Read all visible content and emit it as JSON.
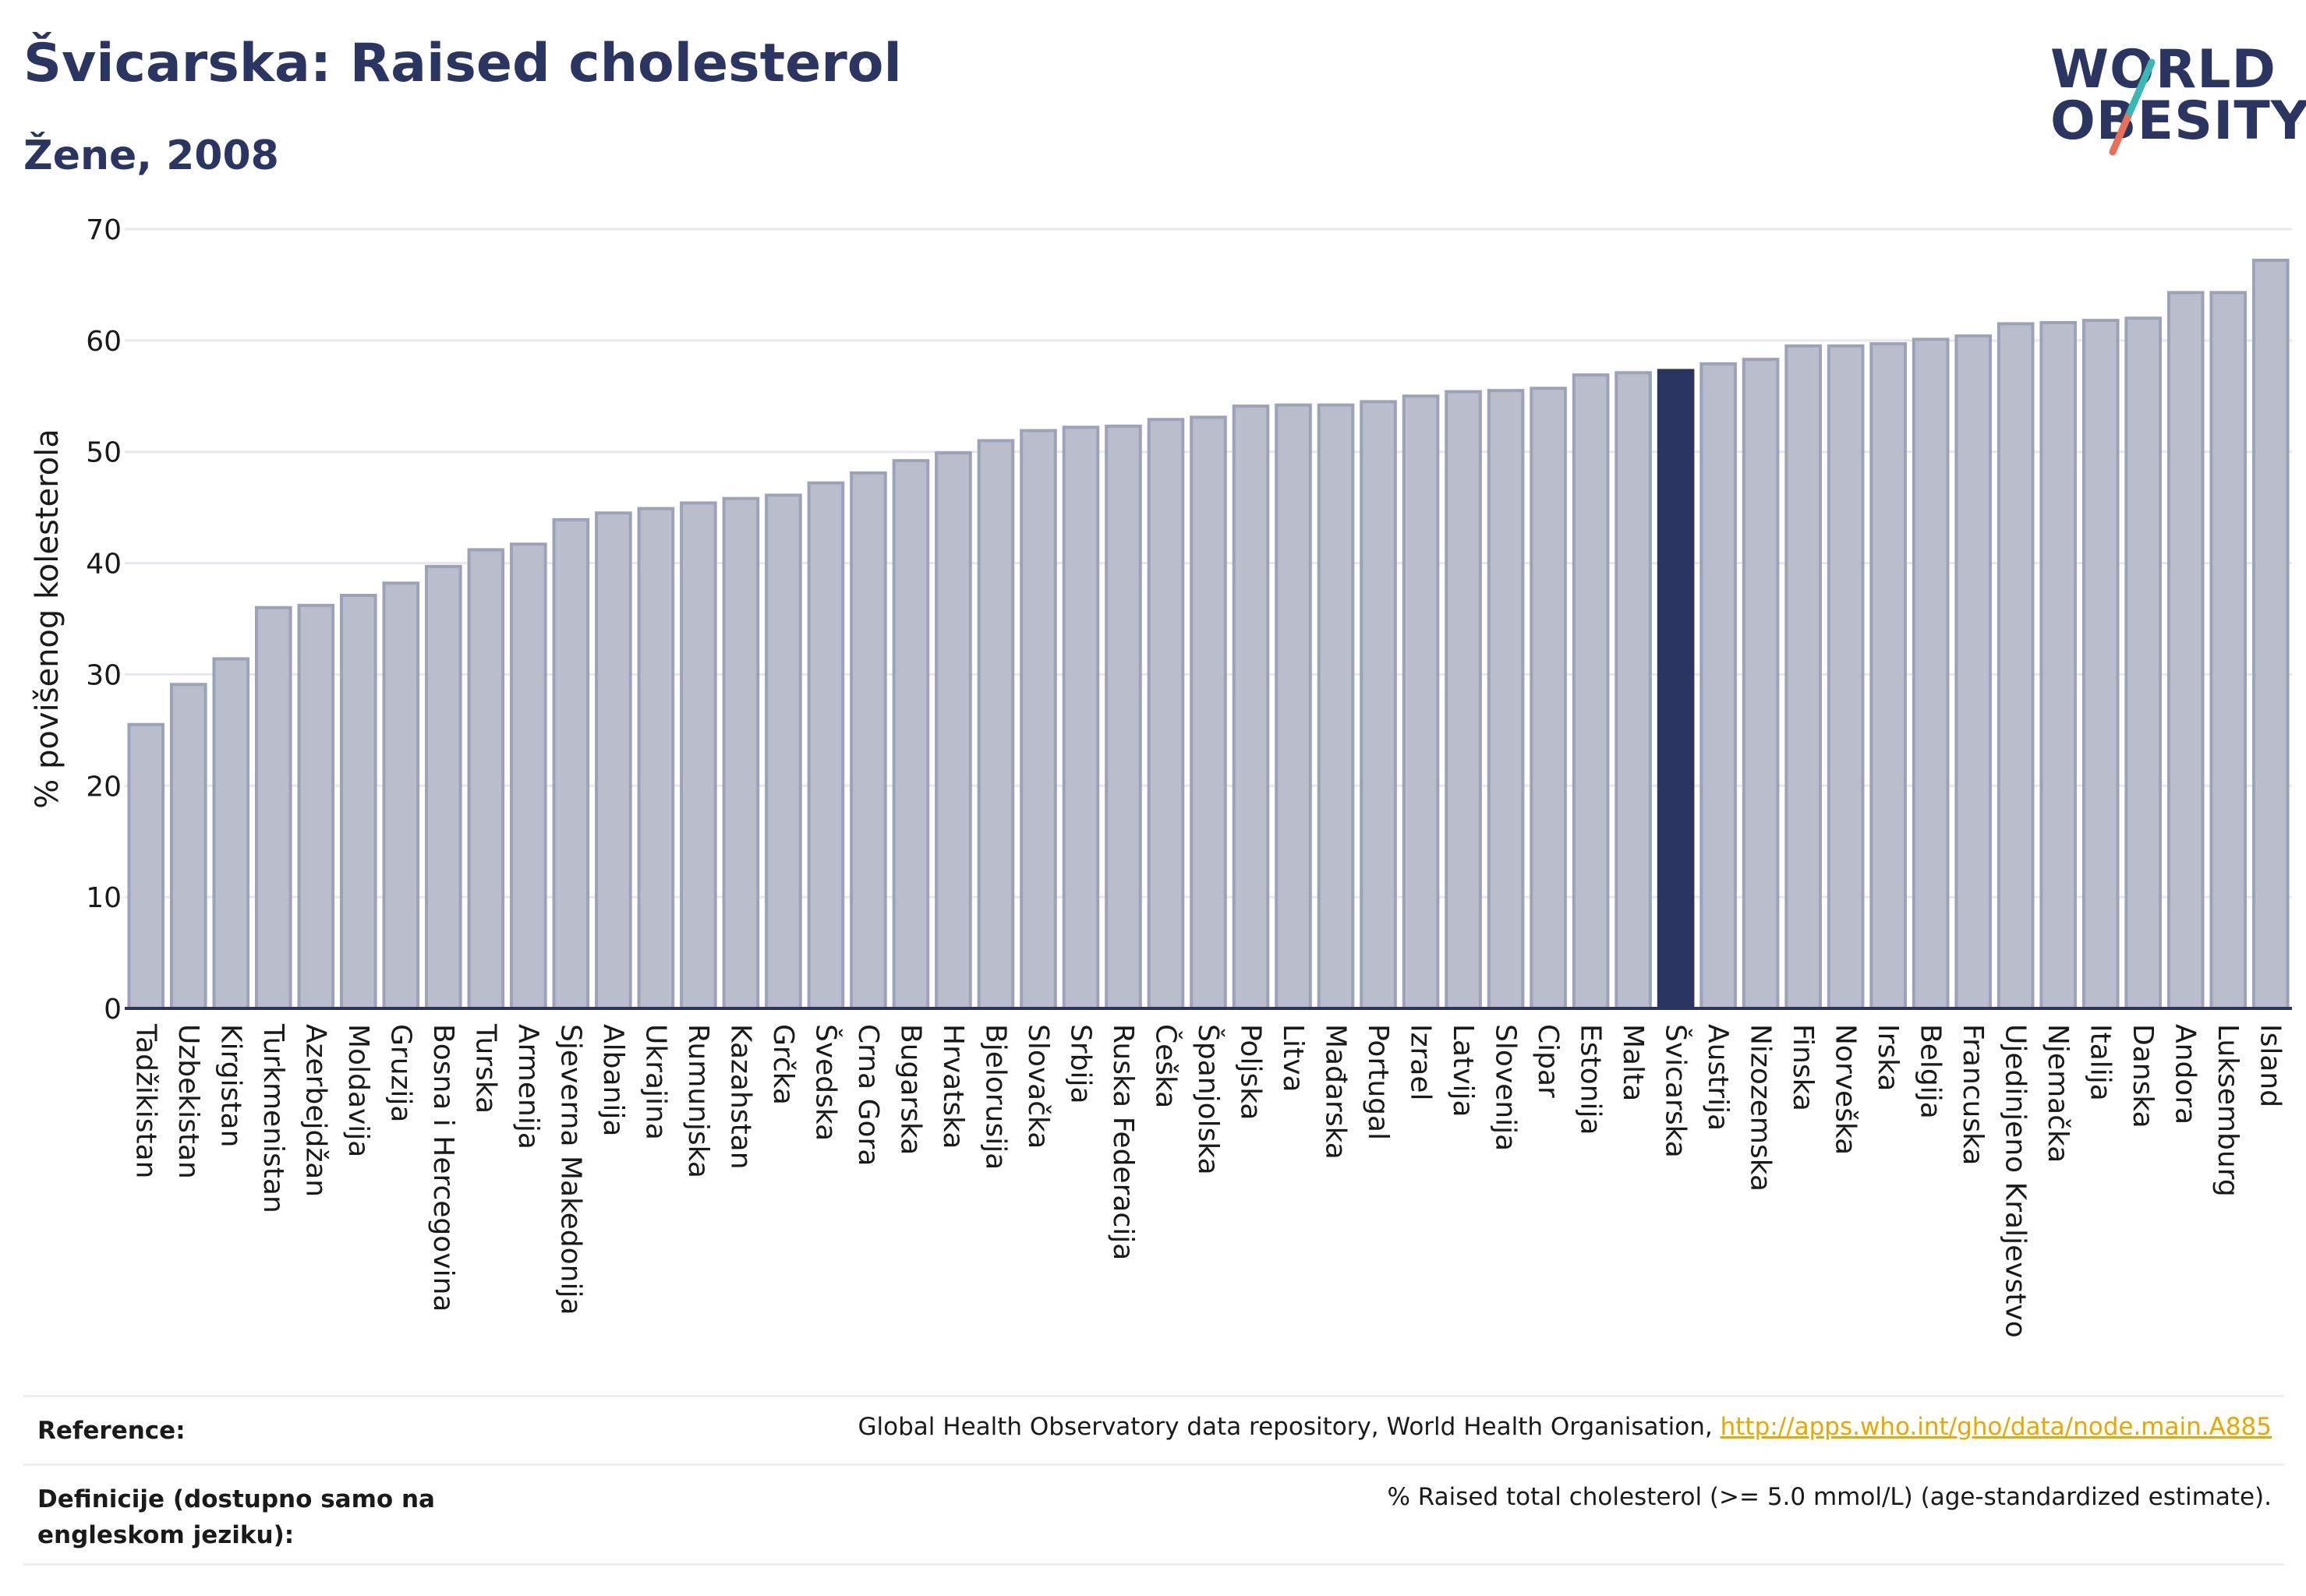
{
  "header": {
    "title": "Švicarska: Raised cholesterol",
    "subtitle": "Žene, 2008"
  },
  "logo": {
    "line1": "WORLD",
    "line2": "OBESITY",
    "slash_colors": [
      "#3cb8b4",
      "#e8705a"
    ]
  },
  "reference": {
    "label": "Reference:",
    "text": "Global Health Observatory data repository, World Health Organisation, ",
    "link": "http://apps.who.int/gho/data/node.main.A885"
  },
  "definition": {
    "label": "Definicije (dostupno samo na engleskom jeziku):",
    "text": "% Raised total cholesterol (>= 5.0 mmol/L) (age-standardized estimate)."
  },
  "colors": {
    "bar": "#b9bdcc",
    "bar_edge": "#9ca2b8",
    "highlight": "#2b3561",
    "grid": "#e6e8ee"
  },
  "chart_data": {
    "type": "bar",
    "ylabel": "% povišenog kolesterola",
    "ylim": [
      0,
      70
    ],
    "yticks": [
      0,
      10,
      20,
      30,
      40,
      50,
      60,
      70
    ],
    "highlight": "Švicarska",
    "grid": true,
    "categories": [
      "Tadžikistan",
      "Uzbekistan",
      "Kirgistan",
      "Turkmenistan",
      "Azerbejdžan",
      "Moldavija",
      "Gruzija",
      "Bosna i Hercegovina",
      "Turska",
      "Armenija",
      "Sjeverna Makedonija",
      "Albanija",
      "Ukrajina",
      "Rumunjska",
      "Kazahstan",
      "Grčka",
      "Švedska",
      "Crna Gora",
      "Bugarska",
      "Hrvatska",
      "Bjelorusija",
      "Slovačka",
      "Srbija",
      "Ruska Federacija",
      "Češka",
      "Španjolska",
      "Poljska",
      "Litva",
      "Mađarska",
      "Portugal",
      "Izrael",
      "Latvija",
      "Slovenija",
      "Cipar",
      "Estonija",
      "Malta",
      "Švicarska",
      "Austrija",
      "Nizozemska",
      "Finska",
      "Norveška",
      "Irska",
      "Belgija",
      "Francuska",
      "Ujedinjeno Kraljevstvo",
      "Njemačka",
      "Italija",
      "Danska",
      "Andora",
      "Luksemburg",
      "Island"
    ],
    "values": [
      25.5,
      29.1,
      31.4,
      36.0,
      36.2,
      37.1,
      38.2,
      39.7,
      41.2,
      41.7,
      43.9,
      44.5,
      44.9,
      45.4,
      45.8,
      46.1,
      47.2,
      48.1,
      49.2,
      49.9,
      51.0,
      51.9,
      52.2,
      52.3,
      52.9,
      53.1,
      54.1,
      54.2,
      54.2,
      54.5,
      55.0,
      55.4,
      55.5,
      55.7,
      56.9,
      57.1,
      57.3,
      57.9,
      58.3,
      59.5,
      59.5,
      59.7,
      60.1,
      60.4,
      61.5,
      61.6,
      61.8,
      62.0,
      64.3,
      64.3,
      67.2
    ]
  }
}
